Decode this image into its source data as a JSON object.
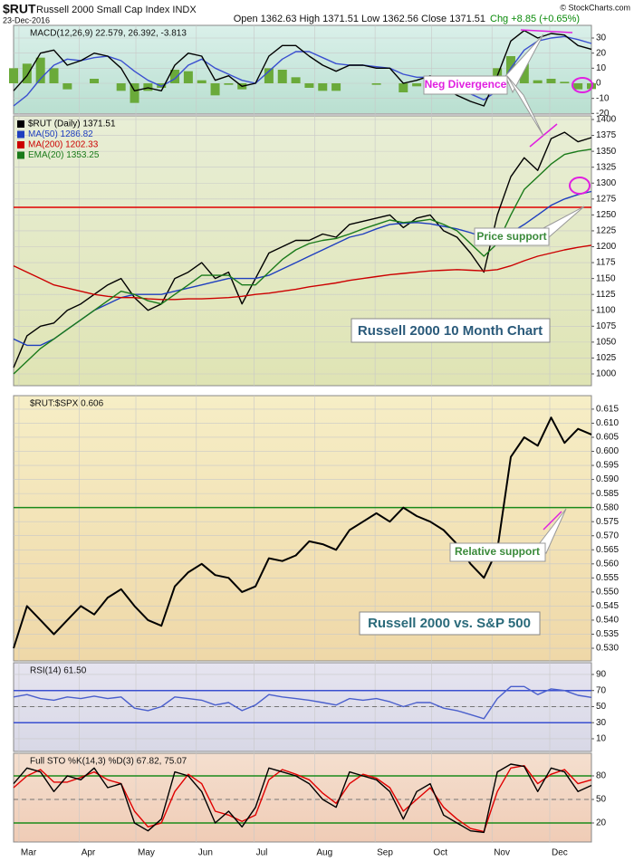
{
  "header": {
    "symbol": "$RUT",
    "name": "Russell 2000 Small Cap Index INDX",
    "date": "23-Dec-2016",
    "ohlc": "Open 1362.63 High 1371.51 Low 1362.56 Close 1371.51",
    "change": "Chg +8.85 (+0.65%)",
    "credit": "© StockCharts.com"
  },
  "chart_data": [
    {
      "type": "line",
      "label": "MACD(12,26,9) 22.579, 26.392, -3.813",
      "x": [
        0,
        1,
        2,
        3,
        4,
        5,
        6,
        7,
        8,
        9,
        10,
        11,
        12,
        13,
        14,
        15,
        16,
        17,
        18,
        19,
        20,
        21,
        22,
        23,
        24,
        25,
        26,
        27,
        28,
        29,
        30,
        31,
        32,
        33,
        34,
        35,
        36,
        37,
        38,
        39,
        40,
        41,
        42,
        43
      ],
      "xlim": [
        0,
        43
      ],
      "ylim": [
        -20.4,
        38.4
      ],
      "yticks": [
        -20,
        -10,
        0,
        10,
        20,
        30
      ],
      "series": [
        {
          "type": "bar",
          "color": "#6aaa3a",
          "values": [
            10,
            13,
            17,
            10,
            -4,
            0,
            3,
            0,
            -5,
            -13,
            -5,
            -3,
            9,
            8,
            2,
            -8,
            -1,
            -4,
            0,
            10,
            9,
            4,
            -3,
            -5,
            -5,
            0,
            0,
            -1,
            0,
            -6,
            -2,
            1,
            -4,
            -5,
            -5,
            -4,
            10,
            18,
            13,
            2,
            3,
            1,
            -4,
            -3.813
          ]
        },
        {
          "type": "line",
          "color": "#3a4fd0",
          "values": [
            -15,
            -8,
            3,
            12,
            16,
            15,
            17,
            18,
            15,
            8,
            2,
            -2,
            3,
            12,
            16,
            10,
            6,
            2,
            0,
            8,
            16,
            21,
            21,
            17,
            13,
            12,
            12,
            11,
            10,
            6,
            4,
            4,
            1,
            -3,
            -7,
            -11,
            -5,
            10,
            22,
            28,
            30,
            31,
            29,
            26.392
          ]
        },
        {
          "type": "line",
          "color": "#000000",
          "values": [
            -5,
            5,
            20,
            22,
            12,
            15,
            20,
            18,
            10,
            -5,
            -3,
            -5,
            12,
            20,
            18,
            2,
            5,
            -2,
            0,
            18,
            25,
            25,
            18,
            12,
            8,
            12,
            12,
            10,
            10,
            0,
            2,
            5,
            -3,
            -8,
            -12,
            -15,
            5,
            28,
            35,
            30,
            33,
            32,
            25,
            22.579
          ]
        }
      ],
      "annotations": [
        "Neg Divergence"
      ]
    },
    {
      "type": "line",
      "x": [
        0,
        1,
        2,
        3,
        4,
        5,
        6,
        7,
        8,
        9,
        10,
        11,
        12,
        13,
        14,
        15,
        16,
        17,
        18,
        19,
        20,
        21,
        22,
        23,
        24,
        25,
        26,
        27,
        28,
        29,
        30,
        31,
        32,
        33,
        34,
        35,
        36,
        37,
        38,
        39,
        40,
        41,
        42,
        43
      ],
      "xlim": [
        0,
        43
      ],
      "ylim": [
        981.5,
        1405.7
      ],
      "yticks": [
        1000,
        1025,
        1050,
        1075,
        1100,
        1125,
        1150,
        1175,
        1200,
        1225,
        1250,
        1275,
        1300,
        1325,
        1350,
        1375,
        1400
      ],
      "hlines": [
        {
          "value": 1262,
          "color": "#e00000"
        }
      ],
      "series": [
        {
          "name": "$RUT (Daily) 1371.51",
          "color": "#000000",
          "values": [
            1010,
            1060,
            1075,
            1080,
            1100,
            1110,
            1125,
            1140,
            1150,
            1120,
            1100,
            1110,
            1150,
            1160,
            1175,
            1150,
            1160,
            1110,
            1150,
            1190,
            1200,
            1210,
            1210,
            1220,
            1215,
            1235,
            1240,
            1245,
            1250,
            1230,
            1245,
            1250,
            1225,
            1215,
            1190,
            1160,
            1250,
            1310,
            1340,
            1320,
            1370,
            1380,
            1365,
            1371.51
          ]
        },
        {
          "name": "MA(50) 1286.82",
          "color": "#1f3fbf",
          "values": [
            1055,
            1045,
            1045,
            1055,
            1070,
            1085,
            1100,
            1110,
            1120,
            1125,
            1125,
            1125,
            1130,
            1135,
            1140,
            1145,
            1150,
            1150,
            1150,
            1155,
            1165,
            1175,
            1185,
            1195,
            1205,
            1215,
            1220,
            1228,
            1235,
            1237,
            1238,
            1236,
            1232,
            1228,
            1222,
            1215,
            1215,
            1222,
            1235,
            1250,
            1265,
            1275,
            1282,
            1286.82
          ]
        },
        {
          "name": "MA(200) 1202.33",
          "color": "#cc0000",
          "values": [
            1170,
            1160,
            1150,
            1140,
            1135,
            1130,
            1125,
            1122,
            1120,
            1120,
            1118,
            1117,
            1117,
            1118,
            1118,
            1119,
            1120,
            1122,
            1125,
            1127,
            1130,
            1133,
            1137,
            1140,
            1143,
            1147,
            1150,
            1153,
            1156,
            1158,
            1160,
            1162,
            1163,
            1164,
            1163,
            1162,
            1164,
            1170,
            1178,
            1185,
            1190,
            1195,
            1199,
            1202.33
          ]
        },
        {
          "name": "EMA(20) 1353.25",
          "color": "#1a7a1a",
          "values": [
            1000,
            1020,
            1040,
            1055,
            1070,
            1085,
            1100,
            1115,
            1130,
            1125,
            1115,
            1110,
            1125,
            1140,
            1155,
            1155,
            1155,
            1140,
            1140,
            1160,
            1180,
            1195,
            1205,
            1210,
            1213,
            1220,
            1228,
            1235,
            1242,
            1238,
            1240,
            1243,
            1235,
            1225,
            1205,
            1185,
            1205,
            1250,
            1290,
            1310,
            1330,
            1345,
            1350,
            1353.25
          ]
        }
      ],
      "annotations": [
        "Russell 2000 10 Month Chart",
        "Price support"
      ]
    },
    {
      "type": "line",
      "label": "$RUT:$SPX 0.606",
      "x": [
        0,
        1,
        2,
        3,
        4,
        5,
        6,
        7,
        8,
        9,
        10,
        11,
        12,
        13,
        14,
        15,
        16,
        17,
        18,
        19,
        20,
        21,
        22,
        23,
        24,
        25,
        26,
        27,
        28,
        29,
        30,
        31,
        32,
        33,
        34,
        35,
        36,
        37,
        38,
        39,
        40,
        41,
        42,
        43
      ],
      "xlim": [
        0,
        43
      ],
      "ylim": [
        0.5255,
        0.6198
      ],
      "yticks": [
        {
          "value": 0.53,
          "label": "0.530"
        },
        0.535,
        {
          "value": 0.54,
          "label": "0.540"
        },
        0.545,
        {
          "value": 0.55,
          "label": "0.550"
        },
        0.555,
        {
          "value": 0.56,
          "label": "0.560"
        },
        0.565,
        {
          "value": 0.57,
          "label": "0.570"
        },
        0.575,
        {
          "value": 0.58,
          "label": "0.580"
        },
        0.585,
        {
          "value": 0.59,
          "label": "0.590"
        },
        0.595,
        {
          "value": 0.6,
          "label": "0.600"
        },
        0.605,
        {
          "value": 0.61,
          "label": "0.610"
        },
        0.615
      ],
      "hlines": [
        {
          "value": 0.58,
          "color": "#1a8a1a"
        }
      ],
      "series": [
        {
          "color": "#000000",
          "values": [
            0.53,
            0.545,
            0.54,
            0.535,
            0.54,
            0.545,
            0.542,
            0.548,
            0.551,
            0.545,
            0.54,
            0.538,
            0.552,
            0.557,
            0.56,
            0.556,
            0.555,
            0.55,
            0.552,
            0.562,
            0.561,
            0.563,
            0.568,
            0.567,
            0.565,
            0.572,
            0.575,
            0.578,
            0.575,
            0.58,
            0.577,
            0.575,
            0.572,
            0.567,
            0.56,
            0.555,
            0.565,
            0.598,
            0.605,
            0.602,
            0.612,
            0.603,
            0.608,
            0.606
          ]
        }
      ],
      "annotations": [
        "Relative support",
        "Russell 2000 vs. S&P 500"
      ]
    },
    {
      "type": "line",
      "label": "RSI(14) 61.50",
      "x": [
        0,
        1,
        2,
        3,
        4,
        5,
        6,
        7,
        8,
        9,
        10,
        11,
        12,
        13,
        14,
        15,
        16,
        17,
        18,
        19,
        20,
        21,
        22,
        23,
        24,
        25,
        26,
        27,
        28,
        29,
        30,
        31,
        32,
        33,
        34,
        35,
        36,
        37,
        38,
        39,
        40,
        41,
        42,
        43
      ],
      "xlim": [
        0,
        43
      ],
      "ylim": [
        -5.8,
        104.6
      ],
      "yticks": [
        10,
        30,
        50,
        70,
        90
      ],
      "hlines": [
        {
          "value": 70,
          "color": "#3a4fd0"
        },
        {
          "value": 30,
          "color": "#3a4fd0"
        },
        {
          "value": 50,
          "color": "#555555",
          "dash": true
        }
      ],
      "series": [
        {
          "color": "#4a5fcc",
          "values": [
            62,
            65,
            60,
            58,
            62,
            60,
            63,
            60,
            62,
            48,
            45,
            50,
            62,
            60,
            58,
            52,
            55,
            45,
            52,
            65,
            62,
            60,
            58,
            55,
            52,
            60,
            58,
            60,
            56,
            50,
            55,
            55,
            48,
            45,
            40,
            35,
            60,
            75,
            75,
            65,
            72,
            70,
            64,
            61.5
          ]
        }
      ]
    },
    {
      "type": "line",
      "label": "Full STO %K(14,3) %D(3) 67.82, 75.07",
      "x": [
        0,
        1,
        2,
        3,
        4,
        5,
        6,
        7,
        8,
        9,
        10,
        11,
        12,
        13,
        14,
        15,
        16,
        17,
        18,
        19,
        20,
        21,
        22,
        23,
        24,
        25,
        26,
        27,
        28,
        29,
        30,
        31,
        32,
        33,
        34,
        35,
        36,
        37,
        38,
        39,
        40,
        41,
        42,
        43
      ],
      "xlim": [
        0,
        43
      ],
      "ylim": [
        -4.2,
        108.8
      ],
      "yticks": [
        20,
        50,
        80
      ],
      "xticks": [
        {
          "value": 0.4,
          "label": "Mar"
        },
        {
          "value": 4.9,
          "label": "Apr"
        },
        {
          "value": 9.1,
          "label": "May"
        },
        {
          "value": 13.6,
          "label": "Jun"
        },
        {
          "value": 17.9,
          "label": "Jul"
        },
        {
          "value": 22.4,
          "label": "Aug"
        },
        {
          "value": 26.9,
          "label": "Sep"
        },
        {
          "value": 31.1,
          "label": "Oct"
        },
        {
          "value": 35.6,
          "label": "Nov"
        },
        {
          "value": 39.9,
          "label": "Dec"
        }
      ],
      "hlines": [
        {
          "value": 80,
          "color": "#1a8a1a"
        },
        {
          "value": 20,
          "color": "#1a8a1a"
        },
        {
          "value": 50,
          "color": "#555555",
          "dash": true
        }
      ],
      "series": [
        {
          "color": "#e00000",
          "values": [
            65,
            80,
            88,
            72,
            72,
            78,
            85,
            75,
            70,
            35,
            15,
            20,
            60,
            82,
            70,
            35,
            30,
            22,
            30,
            75,
            88,
            82,
            75,
            58,
            45,
            70,
            82,
            77,
            65,
            35,
            50,
            65,
            40,
            25,
            13,
            9,
            60,
            90,
            93,
            70,
            82,
            88,
            70,
            75.07
          ]
        },
        {
          "color": "#000000",
          "values": [
            70,
            90,
            85,
            60,
            80,
            75,
            90,
            65,
            70,
            20,
            10,
            25,
            85,
            80,
            60,
            20,
            35,
            15,
            40,
            90,
            85,
            80,
            70,
            50,
            40,
            85,
            80,
            75,
            60,
            25,
            60,
            70,
            30,
            20,
            10,
            8,
            85,
            95,
            92,
            60,
            90,
            85,
            60,
            67.82
          ]
        }
      ]
    }
  ]
}
